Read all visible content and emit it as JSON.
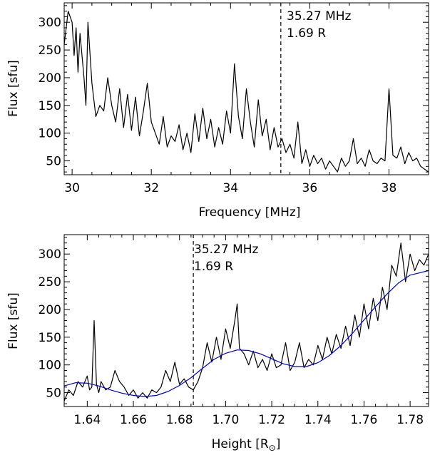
{
  "chart_data": [
    {
      "type": "line",
      "xlabel": "Frequency [MHz]",
      "ylabel": "Flux [sfu]",
      "xlim": [
        29.8,
        39.0
      ],
      "ylim": [
        25,
        335
      ],
      "xticks": [
        30,
        32,
        34,
        36,
        38
      ],
      "xtick_labels": [
        "30",
        "32",
        "34",
        "36",
        "38"
      ],
      "yticks": [
        50,
        100,
        150,
        200,
        250,
        300
      ],
      "ytick_labels": [
        "50",
        "100",
        "150",
        "200",
        "250",
        "300"
      ],
      "grid": false,
      "marker": {
        "x": 35.27,
        "style": "dashed",
        "label_line1": "35.27 MHz",
        "label_line2": "1.69 R"
      },
      "series": [
        {
          "color": "#000000",
          "points": [
            [
              29.8,
              260
            ],
            [
              29.9,
              320
            ],
            [
              30.0,
              300
            ],
            [
              30.05,
              240
            ],
            [
              30.1,
              290
            ],
            [
              30.15,
              210
            ],
            [
              30.2,
              280
            ],
            [
              30.3,
              200
            ],
            [
              30.35,
              150
            ],
            [
              30.4,
              300
            ],
            [
              30.5,
              190
            ],
            [
              30.6,
              130
            ],
            [
              30.7,
              150
            ],
            [
              30.8,
              140
            ],
            [
              30.9,
              200
            ],
            [
              31.0,
              150
            ],
            [
              31.1,
              120
            ],
            [
              31.2,
              180
            ],
            [
              31.3,
              110
            ],
            [
              31.4,
              170
            ],
            [
              31.5,
              105
            ],
            [
              31.6,
              165
            ],
            [
              31.7,
              95
            ],
            [
              31.8,
              140
            ],
            [
              31.9,
              190
            ],
            [
              32.0,
              120
            ],
            [
              32.1,
              100
            ],
            [
              32.2,
              80
            ],
            [
              32.3,
              130
            ],
            [
              32.4,
              75
            ],
            [
              32.5,
              95
            ],
            [
              32.6,
              85
            ],
            [
              32.7,
              115
            ],
            [
              32.8,
              70
            ],
            [
              32.9,
              100
            ],
            [
              33.0,
              65
            ],
            [
              33.1,
              135
            ],
            [
              33.2,
              85
            ],
            [
              33.3,
              145
            ],
            [
              33.4,
              90
            ],
            [
              33.5,
              125
            ],
            [
              33.6,
              75
            ],
            [
              33.7,
              110
            ],
            [
              33.8,
              80
            ],
            [
              33.9,
              140
            ],
            [
              34.0,
              100
            ],
            [
              34.1,
              225
            ],
            [
              34.2,
              130
            ],
            [
              34.3,
              90
            ],
            [
              34.4,
              180
            ],
            [
              34.5,
              120
            ],
            [
              34.6,
              75
            ],
            [
              34.7,
              160
            ],
            [
              34.8,
              95
            ],
            [
              34.9,
              125
            ],
            [
              35.0,
              70
            ],
            [
              35.1,
              110
            ],
            [
              35.2,
              75
            ],
            [
              35.3,
              90
            ],
            [
              35.4,
              65
            ],
            [
              35.5,
              80
            ],
            [
              35.6,
              55
            ],
            [
              35.7,
              120
            ],
            [
              35.8,
              45
            ],
            [
              35.9,
              70
            ],
            [
              36.0,
              40
            ],
            [
              36.1,
              60
            ],
            [
              36.2,
              45
            ],
            [
              36.3,
              55
            ],
            [
              36.4,
              35
            ],
            [
              36.5,
              50
            ],
            [
              36.6,
              40
            ],
            [
              36.7,
              30
            ],
            [
              36.8,
              55
            ],
            [
              36.9,
              40
            ],
            [
              37.0,
              50
            ],
            [
              37.1,
              90
            ],
            [
              37.2,
              45
            ],
            [
              37.3,
              55
            ],
            [
              37.4,
              40
            ],
            [
              37.5,
              70
            ],
            [
              37.6,
              50
            ],
            [
              37.7,
              45
            ],
            [
              37.8,
              55
            ],
            [
              37.9,
              50
            ],
            [
              38.0,
              180
            ],
            [
              38.1,
              60
            ],
            [
              38.2,
              55
            ],
            [
              38.3,
              75
            ],
            [
              38.4,
              45
            ],
            [
              38.5,
              65
            ],
            [
              38.6,
              50
            ],
            [
              38.7,
              55
            ],
            [
              38.8,
              40
            ],
            [
              38.9,
              35
            ],
            [
              39.0,
              30
            ]
          ]
        }
      ]
    },
    {
      "type": "line",
      "xlabel": "Height [R",
      "xlabel_symbol": "⊙",
      "xlabel_end": "]",
      "ylabel": "Flux [sfu]",
      "xlim": [
        1.63,
        1.788
      ],
      "ylim": [
        25,
        335
      ],
      "xticks": [
        1.64,
        1.66,
        1.68,
        1.7,
        1.72,
        1.74,
        1.76,
        1.78
      ],
      "xtick_labels": [
        "1.64",
        "1.66",
        "1.68",
        "1.70",
        "1.72",
        "1.74",
        "1.76",
        "1.78"
      ],
      "yticks": [
        50,
        100,
        150,
        200,
        250,
        300
      ],
      "ytick_labels": [
        "50",
        "100",
        "150",
        "200",
        "250",
        "300"
      ],
      "grid": false,
      "marker": {
        "x": 1.686,
        "style": "dashed",
        "label_line1": "35.27 MHz",
        "label_line2": "1.69 R"
      },
      "series": [
        {
          "color": "#000000",
          "points": [
            [
              1.63,
              35
            ],
            [
              1.632,
              55
            ],
            [
              1.634,
              45
            ],
            [
              1.636,
              70
            ],
            [
              1.638,
              60
            ],
            [
              1.64,
              80
            ],
            [
              1.641,
              55
            ],
            [
              1.642,
              60
            ],
            [
              1.643,
              180
            ],
            [
              1.644,
              65
            ],
            [
              1.645,
              50
            ],
            [
              1.646,
              70
            ],
            [
              1.648,
              55
            ],
            [
              1.65,
              60
            ],
            [
              1.652,
              90
            ],
            [
              1.654,
              70
            ],
            [
              1.656,
              60
            ],
            [
              1.658,
              45
            ],
            [
              1.66,
              55
            ],
            [
              1.662,
              40
            ],
            [
              1.664,
              50
            ],
            [
              1.666,
              40
            ],
            [
              1.668,
              55
            ],
            [
              1.67,
              50
            ],
            [
              1.672,
              60
            ],
            [
              1.674,
              90
            ],
            [
              1.676,
              70
            ],
            [
              1.678,
              105
            ],
            [
              1.68,
              65
            ],
            [
              1.682,
              75
            ],
            [
              1.684,
              60
            ],
            [
              1.686,
              55
            ],
            [
              1.688,
              70
            ],
            [
              1.69,
              95
            ],
            [
              1.692,
              140
            ],
            [
              1.694,
              105
            ],
            [
              1.696,
              150
            ],
            [
              1.698,
              110
            ],
            [
              1.7,
              165
            ],
            [
              1.702,
              130
            ],
            [
              1.704,
              180
            ],
            [
              1.705,
              210
            ],
            [
              1.706,
              130
            ],
            [
              1.708,
              120
            ],
            [
              1.71,
              100
            ],
            [
              1.712,
              125
            ],
            [
              1.714,
              95
            ],
            [
              1.716,
              110
            ],
            [
              1.718,
              90
            ],
            [
              1.72,
              120
            ],
            [
              1.722,
              95
            ],
            [
              1.724,
              100
            ],
            [
              1.726,
              140
            ],
            [
              1.728,
              90
            ],
            [
              1.73,
              105
            ],
            [
              1.732,
              140
            ],
            [
              1.734,
              95
            ],
            [
              1.736,
              110
            ],
            [
              1.738,
              100
            ],
            [
              1.74,
              135
            ],
            [
              1.742,
              110
            ],
            [
              1.744,
              150
            ],
            [
              1.746,
              120
            ],
            [
              1.748,
              155
            ],
            [
              1.75,
              130
            ],
            [
              1.752,
              170
            ],
            [
              1.754,
              135
            ],
            [
              1.756,
              190
            ],
            [
              1.758,
              150
            ],
            [
              1.76,
              210
            ],
            [
              1.762,
              165
            ],
            [
              1.764,
              220
            ],
            [
              1.766,
              180
            ],
            [
              1.768,
              240
            ],
            [
              1.77,
              200
            ],
            [
              1.772,
              280
            ],
            [
              1.774,
              260
            ],
            [
              1.776,
              320
            ],
            [
              1.778,
              250
            ],
            [
              1.78,
              300
            ],
            [
              1.782,
              270
            ],
            [
              1.784,
              290
            ],
            [
              1.786,
              280
            ],
            [
              1.788,
              300
            ]
          ]
        },
        {
          "color": "#0000cc",
          "points": [
            [
              1.63,
              62
            ],
            [
              1.635,
              68
            ],
            [
              1.64,
              67
            ],
            [
              1.645,
              62
            ],
            [
              1.65,
              55
            ],
            [
              1.655,
              49
            ],
            [
              1.66,
              45
            ],
            [
              1.665,
              43
            ],
            [
              1.67,
              45
            ],
            [
              1.675,
              52
            ],
            [
              1.68,
              63
            ],
            [
              1.685,
              77
            ],
            [
              1.69,
              94
            ],
            [
              1.695,
              110
            ],
            [
              1.7,
              121
            ],
            [
              1.705,
              127
            ],
            [
              1.71,
              126
            ],
            [
              1.715,
              120
            ],
            [
              1.72,
              111
            ],
            [
              1.725,
              102
            ],
            [
              1.73,
              97
            ],
            [
              1.735,
              97
            ],
            [
              1.74,
              104
            ],
            [
              1.745,
              117
            ],
            [
              1.75,
              135
            ],
            [
              1.755,
              157
            ],
            [
              1.76,
              181
            ],
            [
              1.765,
              205
            ],
            [
              1.77,
              228
            ],
            [
              1.775,
              248
            ],
            [
              1.78,
              262
            ],
            [
              1.788,
              270
            ]
          ]
        }
      ]
    }
  ]
}
